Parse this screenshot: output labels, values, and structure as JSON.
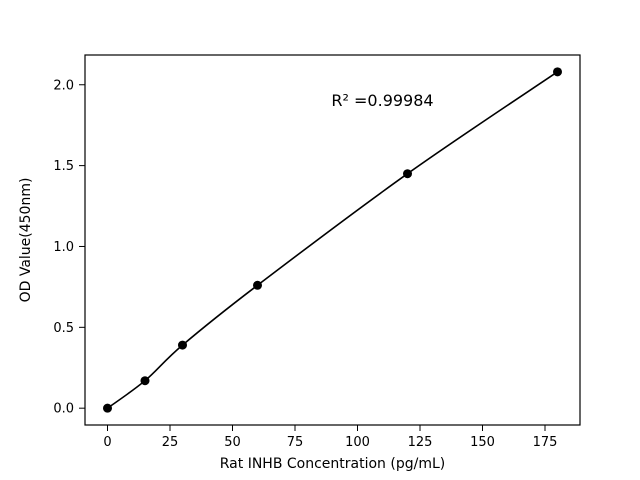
{
  "chart_data": {
    "type": "scatter",
    "x": [
      0,
      15,
      30,
      60,
      120,
      180
    ],
    "y": [
      0.0,
      0.17,
      0.39,
      0.76,
      1.45,
      2.08
    ],
    "title": "",
    "xlabel": "Rat INHB Concentration (pg/mL)",
    "ylabel": "OD Value(450nm)",
    "annotation": "R² =0.99984",
    "annotation_xy": [
      110,
      1.87
    ],
    "xticks": [
      0,
      25,
      50,
      75,
      100,
      125,
      150,
      175
    ],
    "ytick_labels": [
      "0.0",
      "0.5",
      "1.0",
      "1.5",
      "2.0"
    ],
    "yticks": [
      0.0,
      0.5,
      1.0,
      1.5,
      2.0
    ],
    "xlim": [
      -9,
      189
    ],
    "ylim": [
      -0.104,
      2.184
    ],
    "grid": false,
    "legend": "none",
    "line_color": "#000000",
    "marker_color": "#000000",
    "marker_radius": 4.5,
    "background": "#ffffff"
  }
}
